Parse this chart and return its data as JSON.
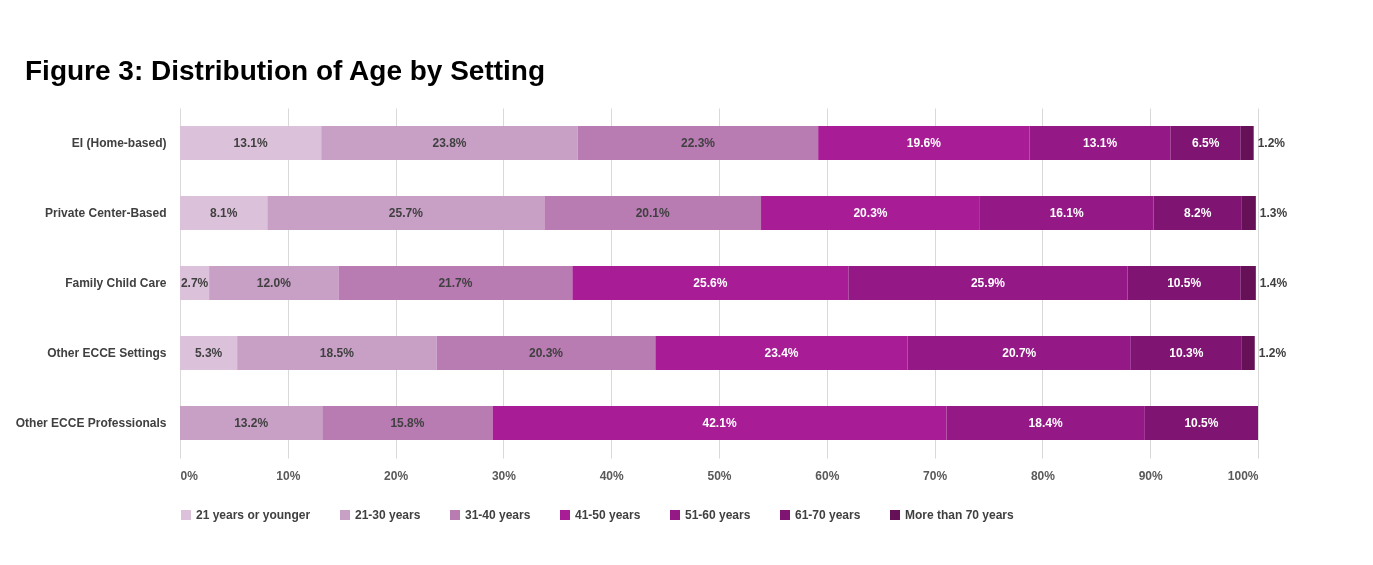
{
  "chart_data": {
    "type": "bar",
    "orientation": "horizontal",
    "stacked": true,
    "title": "Figure 3:  Distribution of Age by Setting",
    "categories": [
      "EI (Home-based)",
      "Private Center-Based",
      "Family Child Care",
      "Other ECCE Settings",
      "Other ECCE Professionals"
    ],
    "series": [
      {
        "name": "21 years or younger",
        "color": "#dcc1da",
        "values": [
          13.1,
          8.1,
          2.7,
          5.3,
          null
        ],
        "value_labels": [
          "13.1%",
          "8.1%",
          "2.7%",
          "5.3%",
          null
        ]
      },
      {
        "name": "21-30 years",
        "color": "#c8a0c6",
        "values": [
          23.8,
          25.7,
          12.0,
          18.5,
          13.2
        ],
        "value_labels": [
          "23.8%",
          "25.7%",
          "12.0%",
          "18.5%",
          "13.2%"
        ]
      },
      {
        "name": "31-40 years",
        "color": "#b87bb2",
        "values": [
          22.3,
          20.1,
          21.7,
          20.3,
          15.8
        ],
        "value_labels": [
          "22.3%",
          "20.1%",
          "21.7%",
          "20.3%",
          "15.8%"
        ]
      },
      {
        "name": "41-50 years",
        "color": "#a81c96",
        "values": [
          19.6,
          20.3,
          25.6,
          23.4,
          42.1
        ],
        "value_labels": [
          "19.6%",
          "20.3%",
          "25.6%",
          "23.4%",
          "42.1%"
        ]
      },
      {
        "name": "51-60 years",
        "color": "#951887",
        "values": [
          13.1,
          16.1,
          25.9,
          20.7,
          18.4
        ],
        "value_labels": [
          "13.1%",
          "16.1%",
          "25.9%",
          "20.7%",
          "18.4%"
        ]
      },
      {
        "name": "61-70 years",
        "color": "#7f1472",
        "values": [
          6.5,
          8.2,
          10.5,
          10.3,
          10.5
        ],
        "value_labels": [
          "6.5%",
          "8.2%",
          "10.5%",
          "10.3%",
          "10.5%"
        ]
      },
      {
        "name": "More than 70 years",
        "color": "#661058",
        "values": [
          1.2,
          1.3,
          1.4,
          1.2,
          null
        ],
        "value_labels": [
          "1.2%",
          "1.3%",
          "1.4%",
          "1.2%",
          null
        ]
      }
    ],
    "xlim": [
      0,
      100
    ],
    "xticks": [
      {
        "value": 0,
        "label": "0%"
      },
      {
        "value": 10,
        "label": "10%"
      },
      {
        "value": 20,
        "label": "20%"
      },
      {
        "value": 30,
        "label": "30%"
      },
      {
        "value": 40,
        "label": "40%"
      },
      {
        "value": 50,
        "label": "50%"
      },
      {
        "value": 60,
        "label": "60%"
      },
      {
        "value": 70,
        "label": "70%"
      },
      {
        "value": 80,
        "label": "80%"
      },
      {
        "value": 90,
        "label": "90%"
      },
      {
        "value": 100,
        "label": "100%"
      }
    ],
    "grid": "x",
    "legend": "bottom"
  }
}
